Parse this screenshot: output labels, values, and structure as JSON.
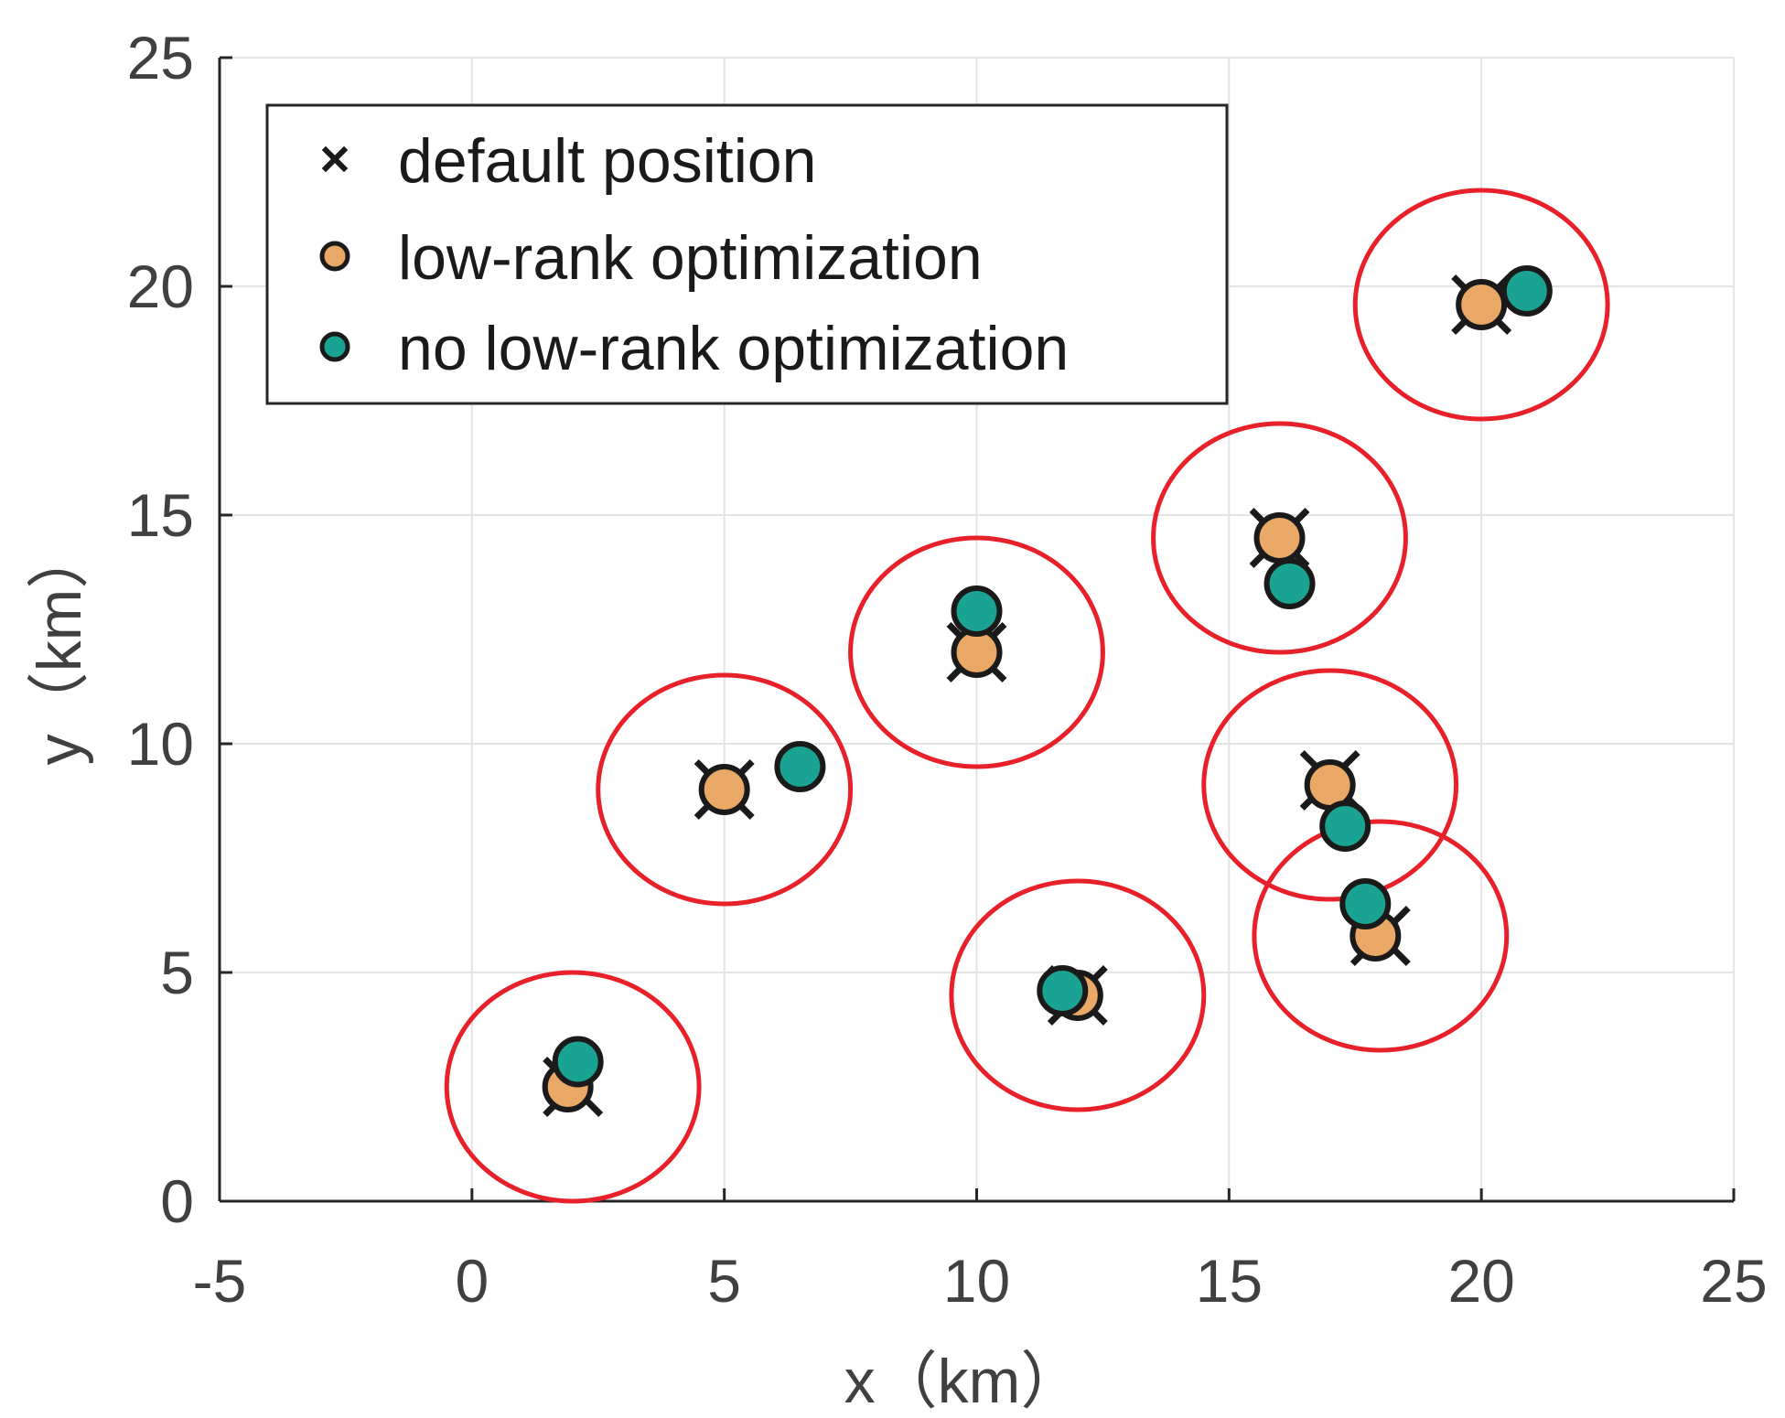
{
  "chart_data": {
    "type": "scatter",
    "title": "",
    "xlabel": "x（km）",
    "ylabel": "y（km）",
    "xlim": [
      -5,
      25
    ],
    "ylim": [
      0,
      25
    ],
    "xticks": [
      -5,
      0,
      5,
      10,
      15,
      20,
      25
    ],
    "yticks": [
      0,
      5,
      10,
      15,
      20,
      25
    ],
    "grid": true,
    "legend": {
      "location": "top-left",
      "entries": [
        {
          "label": "default position",
          "marker": "x",
          "color": "#000000"
        },
        {
          "label": "low-rank optimization",
          "marker": "circle",
          "color": "#E9A865"
        },
        {
          "label": "no low-rank optimization",
          "marker": "circle",
          "color": "#1AA393"
        }
      ]
    },
    "series": [
      {
        "name": "default position",
        "marker": "x",
        "color": "#000000",
        "points": [
          {
            "x": 2,
            "y": 2.5
          },
          {
            "x": 5,
            "y": 9
          },
          {
            "x": 10,
            "y": 12
          },
          {
            "x": 12,
            "y": 4.5
          },
          {
            "x": 16,
            "y": 14.5
          },
          {
            "x": 17,
            "y": 9.2
          },
          {
            "x": 18,
            "y": 5.8
          },
          {
            "x": 20,
            "y": 19.6
          }
        ]
      },
      {
        "name": "low-rank optimization",
        "marker": "circle",
        "color": "#E9A865",
        "points": [
          {
            "x": 1.9,
            "y": 2.5
          },
          {
            "x": 5.0,
            "y": 9.0
          },
          {
            "x": 10.0,
            "y": 12.0
          },
          {
            "x": 12.0,
            "y": 4.5
          },
          {
            "x": 16.0,
            "y": 14.5
          },
          {
            "x": 17.0,
            "y": 9.1
          },
          {
            "x": 17.9,
            "y": 5.8
          },
          {
            "x": 20.0,
            "y": 19.6
          }
        ]
      },
      {
        "name": "no low-rank optimization",
        "marker": "circle",
        "color": "#1AA393",
        "points": [
          {
            "x": 2.1,
            "y": 3.05
          },
          {
            "x": 6.5,
            "y": 9.5
          },
          {
            "x": 10.0,
            "y": 12.9
          },
          {
            "x": 11.7,
            "y": 4.6
          },
          {
            "x": 16.2,
            "y": 13.5
          },
          {
            "x": 17.3,
            "y": 8.2
          },
          {
            "x": 17.7,
            "y": 6.5
          },
          {
            "x": 20.9,
            "y": 19.9
          }
        ]
      }
    ],
    "coverage_circles": {
      "color": "#E8202A",
      "radius_km": 2.5,
      "centers": [
        {
          "x": 2,
          "y": 2.5
        },
        {
          "x": 5,
          "y": 9
        },
        {
          "x": 10,
          "y": 12
        },
        {
          "x": 12,
          "y": 4.5
        },
        {
          "x": 16,
          "y": 14.5
        },
        {
          "x": 17,
          "y": 9.1
        },
        {
          "x": 18,
          "y": 5.8
        },
        {
          "x": 20,
          "y": 19.6
        }
      ]
    }
  }
}
